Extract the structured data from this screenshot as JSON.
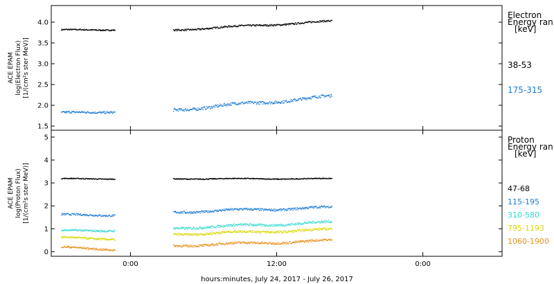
{
  "chart_data": [
    {
      "type": "scatter",
      "panel": "electron",
      "ylabel_lines": [
        "ACE EPAM",
        "log(Electron Flux)",
        "[1/(cm²s ster MeV)]"
      ],
      "ylim": [
        1.4,
        4.4
      ],
      "yticks": [
        "1.5",
        "2.0",
        "2.5",
        "3.0",
        "3.5",
        "4.0"
      ],
      "legend_title": [
        "Electron",
        "Energy ran",
        "[keV]"
      ],
      "series": [
        {
          "name": "38-53",
          "color": "#000000",
          "segments": [
            {
              "x": [
                -5.7,
                -1.3
              ],
              "y": [
                3.82,
                3.83
              ],
              "noise": 0.015
            },
            {
              "x": [
                3.5,
                16.5
              ],
              "y": [
                3.82,
                4.03
              ],
              "noise": 0.02
            }
          ]
        },
        {
          "name": "175-315",
          "color": "#1a7ad4",
          "segments": [
            {
              "x": [
                -5.7,
                -1.3
              ],
              "y": [
                1.82,
                1.86
              ],
              "noise": 0.025
            },
            {
              "x": [
                3.5,
                16.5
              ],
              "y": [
                1.9,
                2.22
              ],
              "noise": 0.035
            }
          ]
        }
      ]
    },
    {
      "type": "scatter",
      "panel": "proton",
      "ylabel_lines": [
        "ACE EPAM",
        "log(Proton Flux)",
        "[1/(cm²s ster MeV)]"
      ],
      "ylim": [
        -0.2,
        5.3
      ],
      "yticks": [
        "0",
        "1",
        "2",
        "3",
        "4",
        "5"
      ],
      "legend_title": [
        "Proton",
        "Energy ran",
        "[keV]"
      ],
      "series": [
        {
          "name": "47-68",
          "color": "#000000",
          "segments": [
            {
              "x": [
                -5.7,
                -1.3
              ],
              "y": [
                3.2,
                3.2
              ],
              "noise": 0.02
            },
            {
              "x": [
                3.5,
                16.5
              ],
              "y": [
                3.2,
                3.2
              ],
              "noise": 0.02
            }
          ]
        },
        {
          "name": "115-195",
          "color": "#1a7ad4",
          "segments": [
            {
              "x": [
                -5.7,
                -1.3
              ],
              "y": [
                1.62,
                1.62
              ],
              "noise": 0.04
            },
            {
              "x": [
                3.5,
                16.5
              ],
              "y": [
                1.75,
                1.95
              ],
              "noise": 0.05
            }
          ]
        },
        {
          "name": "310-580",
          "color": "#33d9d0",
          "segments": [
            {
              "x": [
                -5.7,
                -1.3
              ],
              "y": [
                0.92,
                0.95
              ],
              "noise": 0.04
            },
            {
              "x": [
                3.5,
                16.5
              ],
              "y": [
                1.05,
                1.3
              ],
              "noise": 0.05
            }
          ]
        },
        {
          "name": "795-1193",
          "color": "#d8d800",
          "segments": [
            {
              "x": [
                -5.7,
                -1.3
              ],
              "y": [
                0.62,
                0.58
              ],
              "noise": 0.04
            },
            {
              "x": [
                3.5,
                16.5
              ],
              "y": [
                0.78,
                0.98
              ],
              "noise": 0.05
            }
          ]
        },
        {
          "name": "1060-1900",
          "color": "#e8901a",
          "segments": [
            {
              "x": [
                -5.7,
                -1.3
              ],
              "y": [
                0.2,
                0.12
              ],
              "noise": 0.04
            },
            {
              "x": [
                3.5,
                16.5
              ],
              "y": [
                0.28,
                0.5
              ],
              "noise": 0.05
            }
          ]
        }
      ]
    }
  ],
  "x_axis": {
    "title": "hours:minutes, July 24, 2017 - July 26, 2017",
    "xlim": [
      -6.5,
      30.5
    ],
    "ticks": [
      {
        "value": 0,
        "label": "0:00"
      },
      {
        "value": 12,
        "label": "12:00"
      },
      {
        "value": 24,
        "label": "0:00"
      }
    ]
  }
}
